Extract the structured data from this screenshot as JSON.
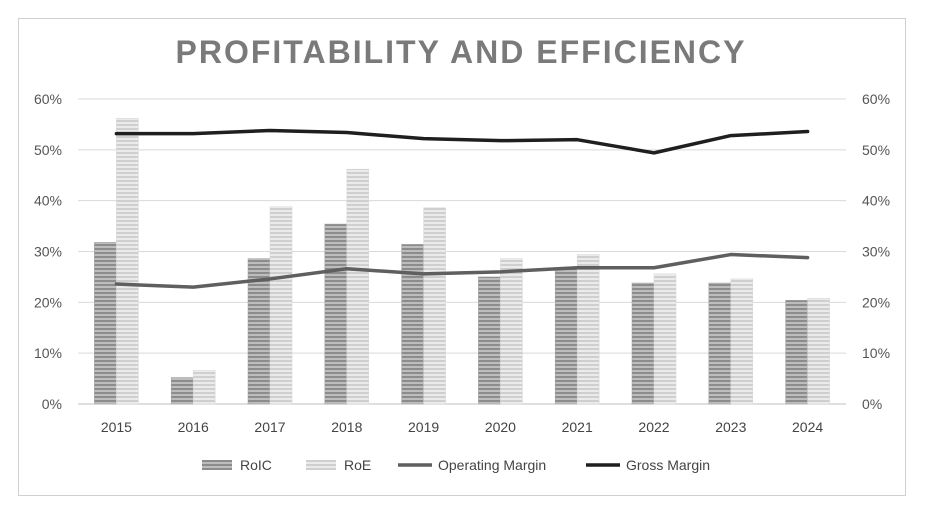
{
  "chart_data": {
    "type": "bar",
    "title": "PROFITABILITY AND EFFICIENCY",
    "categories": [
      "2015",
      "2016",
      "2017",
      "2018",
      "2019",
      "2020",
      "2021",
      "2022",
      "2023",
      "2024"
    ],
    "ylim": [
      0,
      60
    ],
    "y_ticks": [
      "0%",
      "10%",
      "20%",
      "30%",
      "40%",
      "50%",
      "60%"
    ],
    "y2lim": [
      0,
      60
    ],
    "y2_ticks": [
      "0%",
      "10%",
      "20%",
      "30%",
      "40%",
      "50%",
      "60%"
    ],
    "grid": true,
    "legend_position": "bottom",
    "series": [
      {
        "name": "RoIC",
        "kind": "bar",
        "color": "#9a9a9a",
        "values": [
          31.8,
          5.2,
          28.6,
          35.4,
          31.4,
          25.0,
          26.6,
          23.8,
          23.8,
          20.4
        ]
      },
      {
        "name": "RoE",
        "kind": "bar",
        "color": "#d4d4d4",
        "values": [
          56.2,
          6.6,
          38.8,
          46.2,
          38.6,
          28.6,
          29.4,
          25.6,
          24.6,
          20.8
        ]
      },
      {
        "name": "Operating Margin",
        "kind": "line",
        "color": "#5f5f5f",
        "values": [
          23.6,
          23.0,
          24.6,
          26.6,
          25.6,
          26.0,
          26.8,
          26.8,
          29.4,
          28.8
        ]
      },
      {
        "name": "Gross Margin",
        "kind": "line",
        "color": "#1f1f1f",
        "values": [
          53.2,
          53.2,
          53.8,
          53.4,
          52.2,
          51.8,
          52.0,
          49.4,
          52.8,
          53.6
        ]
      }
    ]
  }
}
